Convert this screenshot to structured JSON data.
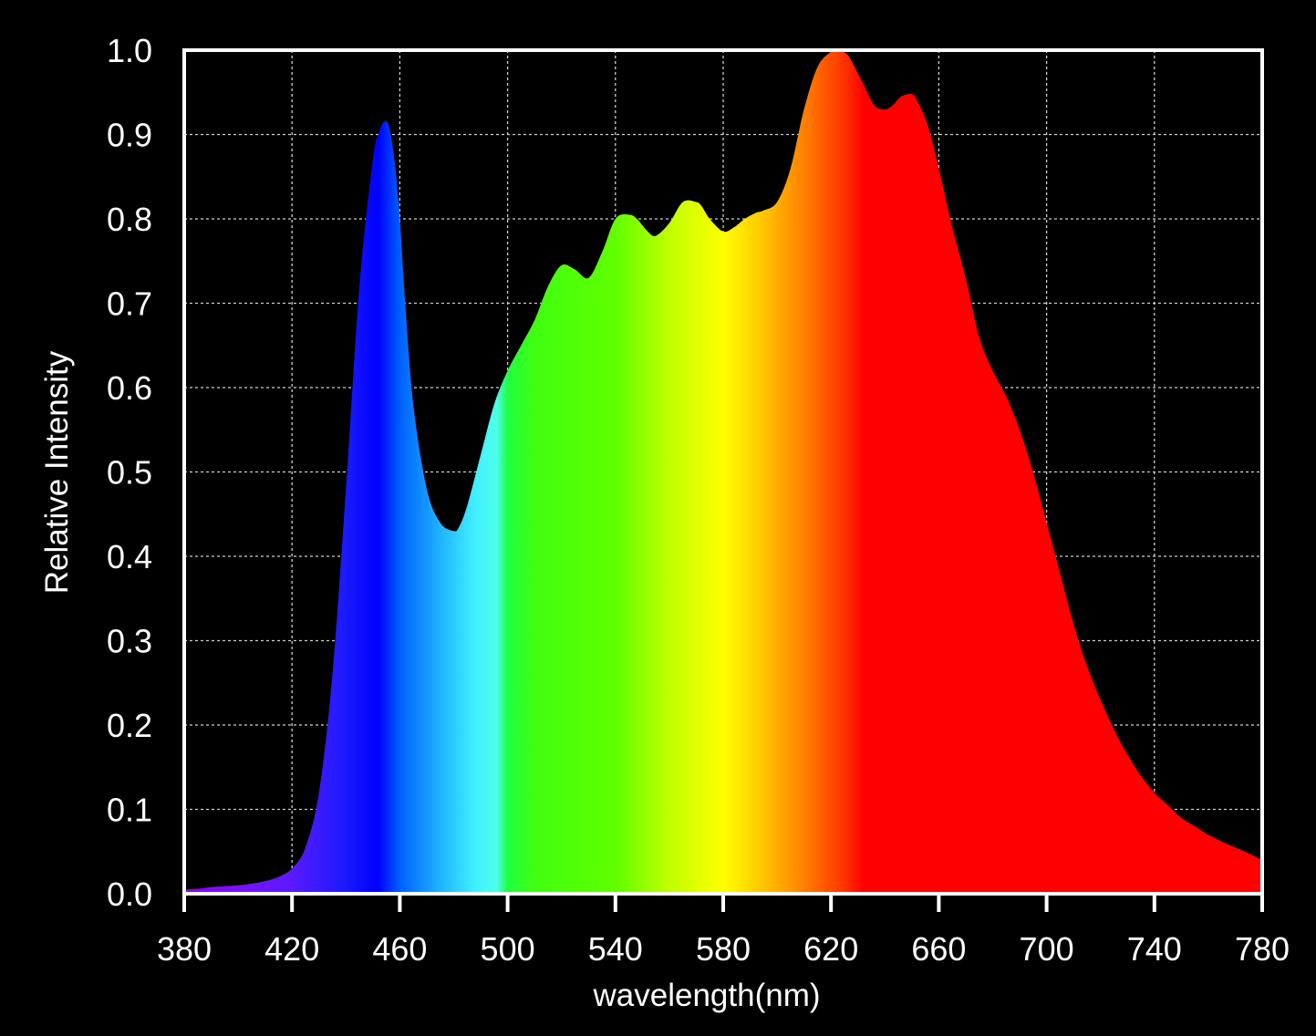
{
  "chart_data": {
    "type": "area",
    "title": "",
    "xlabel": "wavelength(nm)",
    "ylabel": "Relative Intensity",
    "xlim": [
      380,
      780
    ],
    "ylim": [
      0,
      1.0
    ],
    "x_ticks": [
      380,
      420,
      460,
      500,
      540,
      580,
      620,
      660,
      700,
      740,
      780
    ],
    "y_ticks": [
      "0.0",
      "0.1",
      "0.2",
      "0.3",
      "0.4",
      "0.5",
      "0.6",
      "0.7",
      "0.8",
      "0.9",
      "1.0"
    ],
    "grid": true,
    "fill": "visible-spectrum gradient",
    "series": [
      {
        "x": [
          380,
          385,
          390,
          395,
          400,
          405,
          410,
          415,
          420,
          425,
          430,
          435,
          440,
          445,
          450,
          452,
          454,
          456,
          458,
          460,
          462,
          465,
          470,
          475,
          480,
          482,
          485,
          490,
          495,
          500,
          505,
          510,
          515,
          520,
          525,
          530,
          535,
          540,
          545,
          548,
          552,
          555,
          560,
          565,
          570,
          572,
          575,
          580,
          584,
          588,
          592,
          595,
          600,
          605,
          610,
          615,
          620,
          623,
          626,
          628,
          632,
          636,
          640,
          643,
          646,
          650,
          652,
          656,
          660,
          665,
          670,
          675,
          680,
          685,
          690,
          695,
          700,
          705,
          710,
          715,
          720,
          725,
          730,
          735,
          740,
          745,
          750,
          755,
          760,
          765,
          770,
          775,
          780
        ],
        "y": [
          0.005,
          0.006,
          0.008,
          0.009,
          0.01,
          0.012,
          0.015,
          0.02,
          0.03,
          0.055,
          0.12,
          0.26,
          0.48,
          0.72,
          0.87,
          0.9,
          0.915,
          0.91,
          0.87,
          0.8,
          0.7,
          0.58,
          0.48,
          0.44,
          0.43,
          0.435,
          0.46,
          0.52,
          0.58,
          0.62,
          0.65,
          0.68,
          0.72,
          0.745,
          0.74,
          0.73,
          0.76,
          0.8,
          0.805,
          0.8,
          0.785,
          0.78,
          0.795,
          0.82,
          0.82,
          0.815,
          0.8,
          0.785,
          0.79,
          0.8,
          0.807,
          0.81,
          0.82,
          0.86,
          0.93,
          0.98,
          0.998,
          1.0,
          0.995,
          0.985,
          0.96,
          0.935,
          0.93,
          0.935,
          0.945,
          0.948,
          0.94,
          0.91,
          0.86,
          0.79,
          0.73,
          0.66,
          0.62,
          0.59,
          0.55,
          0.5,
          0.44,
          0.38,
          0.32,
          0.27,
          0.23,
          0.195,
          0.165,
          0.14,
          0.12,
          0.105,
          0.09,
          0.08,
          0.07,
          0.062,
          0.055,
          0.048,
          0.04
        ]
      }
    ],
    "spectrum_stops": [
      {
        "nm": 380,
        "color": "#8a00ff"
      },
      {
        "nm": 400,
        "color": "#7a10ff"
      },
      {
        "nm": 420,
        "color": "#5a1aff"
      },
      {
        "nm": 440,
        "color": "#1a1aff"
      },
      {
        "nm": 452,
        "color": "#0000ff"
      },
      {
        "nm": 460,
        "color": "#0060ff"
      },
      {
        "nm": 475,
        "color": "#20b4ff"
      },
      {
        "nm": 488,
        "color": "#40f0ff"
      },
      {
        "nm": 496,
        "color": "#4dffe8"
      },
      {
        "nm": 500,
        "color": "#20ff40"
      },
      {
        "nm": 510,
        "color": "#40ff10"
      },
      {
        "nm": 540,
        "color": "#60ff00"
      },
      {
        "nm": 560,
        "color": "#c0ff00"
      },
      {
        "nm": 580,
        "color": "#ffff00"
      },
      {
        "nm": 595,
        "color": "#ffc400"
      },
      {
        "nm": 610,
        "color": "#ff8000"
      },
      {
        "nm": 625,
        "color": "#ff3300"
      },
      {
        "nm": 632,
        "color": "#ff0000"
      },
      {
        "nm": 780,
        "color": "#ff0000"
      }
    ]
  }
}
